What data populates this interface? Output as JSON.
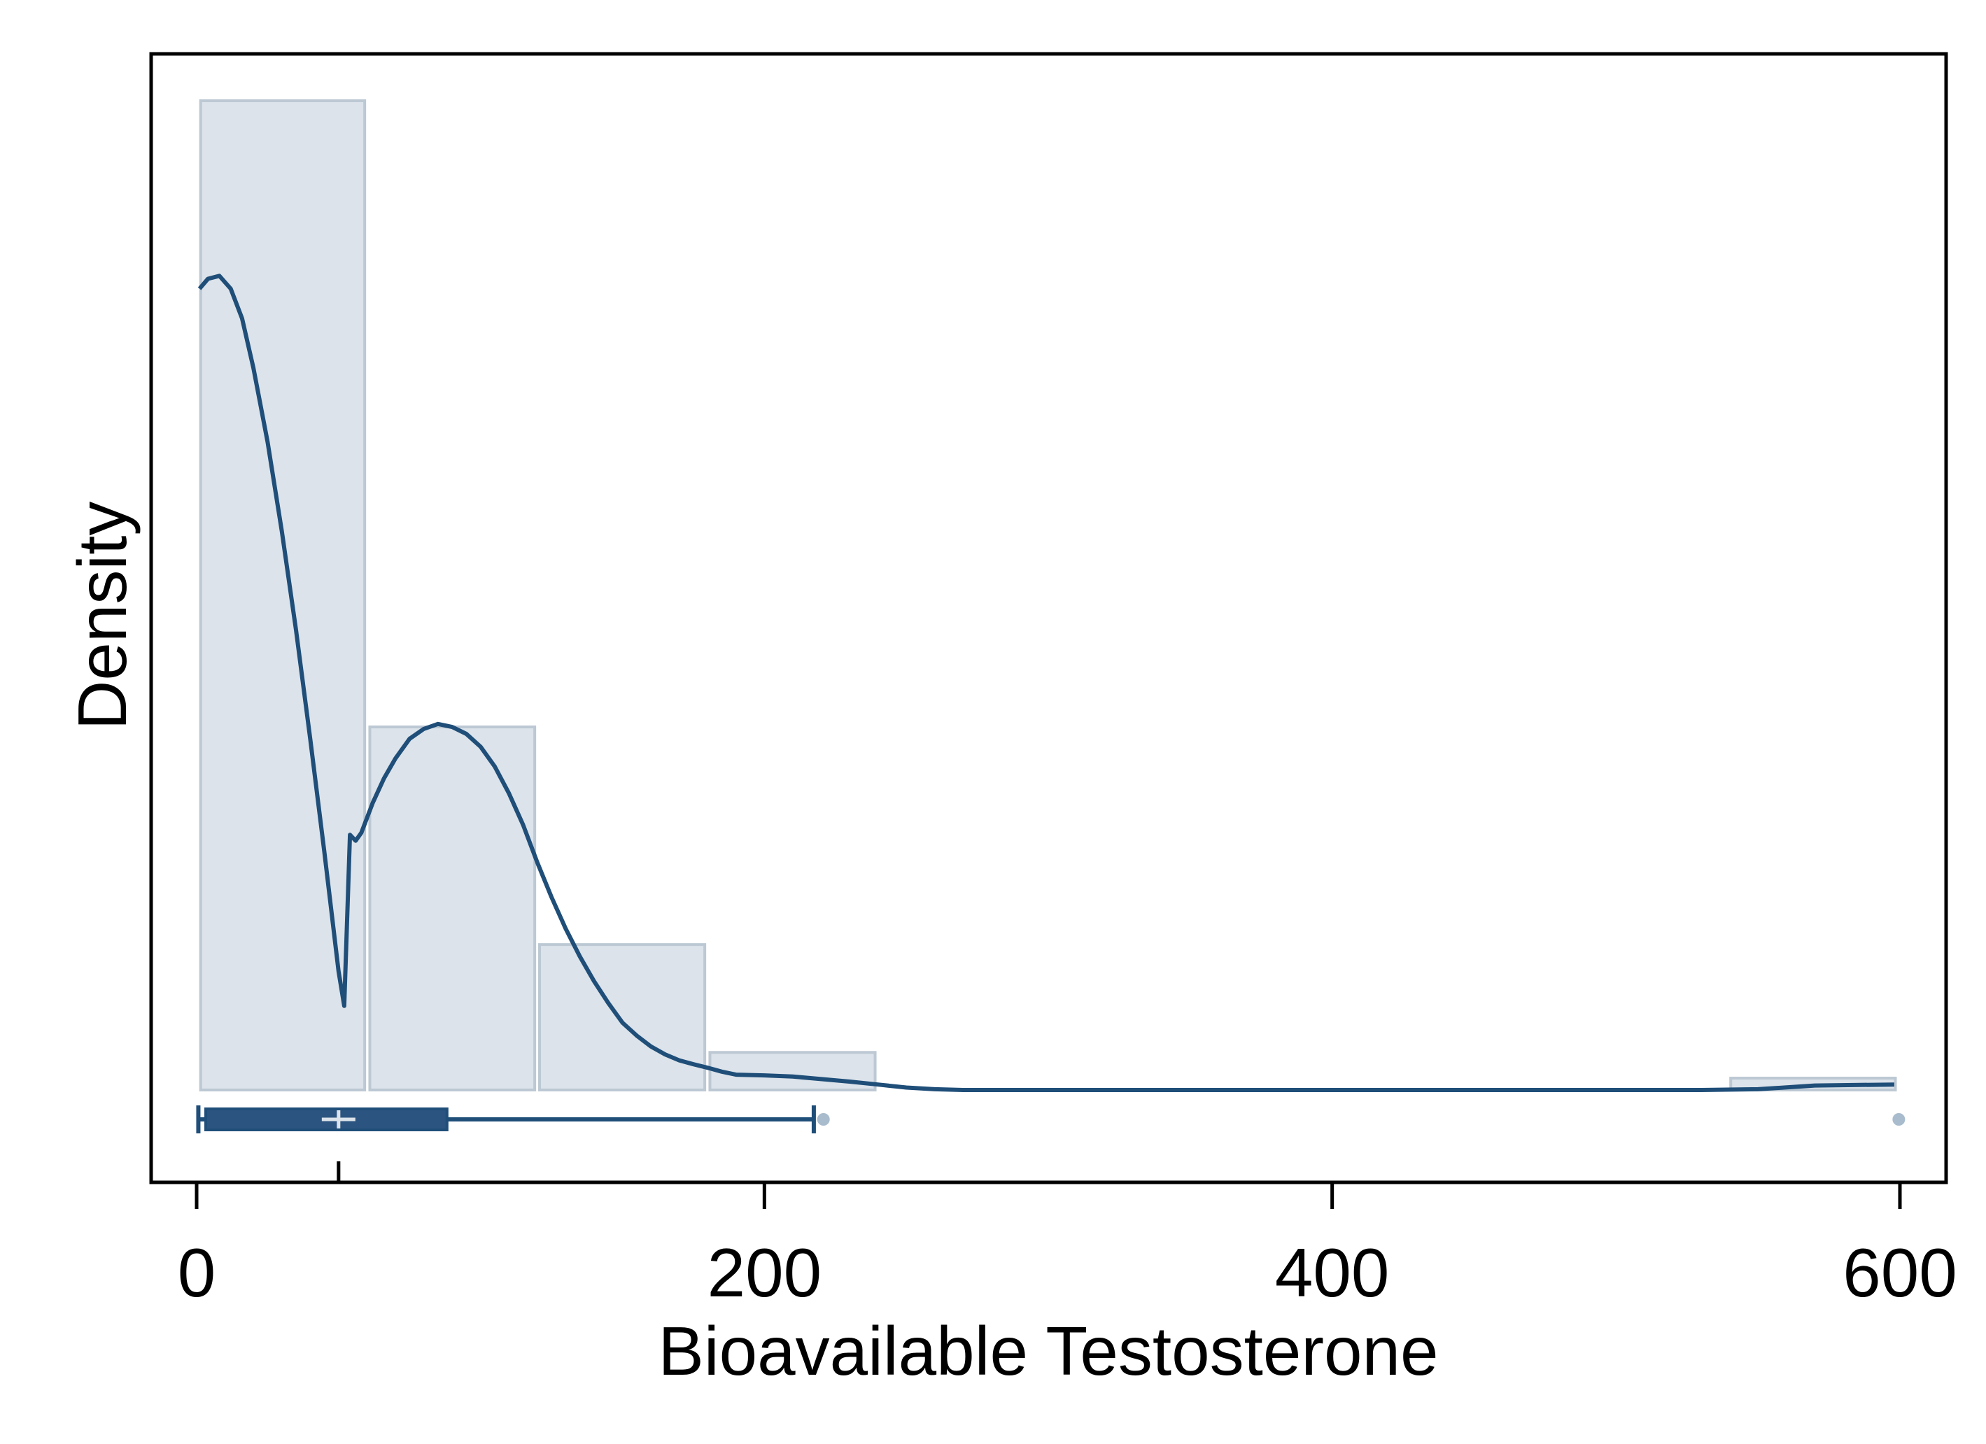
{
  "chart_data": {
    "type": "histogram",
    "title": "",
    "xlabel": "Bioavailable Testosterone",
    "ylabel": "Density",
    "xlim": [
      -16,
      615
    ],
    "x_ticks": [
      0,
      200,
      400,
      600
    ],
    "x_tick_labels": [
      "0",
      "200",
      "400",
      "600"
    ],
    "y_ticks_shown": false,
    "grid": false,
    "legend": "none",
    "relative_density_max": 1.0,
    "histogram": {
      "bins": [
        {
          "start": 1.4,
          "end": 59.2,
          "density": 1.0
        },
        {
          "start": 61.0,
          "end": 119.1,
          "density": 0.367
        },
        {
          "start": 120.8,
          "end": 179.0,
          "density": 0.147
        },
        {
          "start": 180.8,
          "end": 239.0,
          "density": 0.038
        },
        {
          "start": 540.4,
          "end": 598.4,
          "density": 0.012
        }
      ]
    },
    "kde": {
      "x": [
        1,
        4,
        8,
        12,
        16,
        20,
        25,
        30,
        35,
        40,
        45,
        50,
        52,
        54,
        56,
        58,
        62,
        66,
        70,
        75,
        80,
        85,
        90,
        95,
        100,
        105,
        110,
        115,
        120,
        125,
        130,
        135,
        140,
        145,
        150,
        155,
        160,
        165,
        170,
        175,
        180,
        185,
        190,
        200,
        210,
        220,
        230,
        240,
        250,
        260,
        270,
        300,
        400,
        500,
        530,
        550,
        570,
        598
      ],
      "y": [
        0.81,
        0.82,
        0.823,
        0.81,
        0.78,
        0.73,
        0.655,
        0.565,
        0.465,
        0.355,
        0.24,
        0.12,
        0.085,
        0.258,
        0.252,
        0.26,
        0.29,
        0.315,
        0.335,
        0.355,
        0.365,
        0.37,
        0.367,
        0.36,
        0.347,
        0.327,
        0.3,
        0.268,
        0.23,
        0.195,
        0.163,
        0.135,
        0.11,
        0.088,
        0.068,
        0.055,
        0.044,
        0.036,
        0.03,
        0.026,
        0.0225,
        0.0185,
        0.0155,
        0.0148,
        0.0136,
        0.011,
        0.0085,
        0.0055,
        0.0025,
        0.0008,
        0.0,
        0.0,
        0.0,
        0.0,
        0.0,
        0.0008,
        0.0045,
        0.0055
      ]
    },
    "boxplot": {
      "whisker_low": 0.6,
      "q1": 3.2,
      "median": 50.0,
      "mean": 50.0,
      "q3": 88.2,
      "whisker_high": 217.4,
      "outliers": [
        220.8,
        599.6
      ]
    },
    "colors": {
      "bar_fill": "#dce3ea",
      "bar_stroke": "#bcc8d3",
      "line": "#1f4e79",
      "box_fill": "#2c5480",
      "outlier": "#a9bccd",
      "axis": "#000000"
    }
  }
}
